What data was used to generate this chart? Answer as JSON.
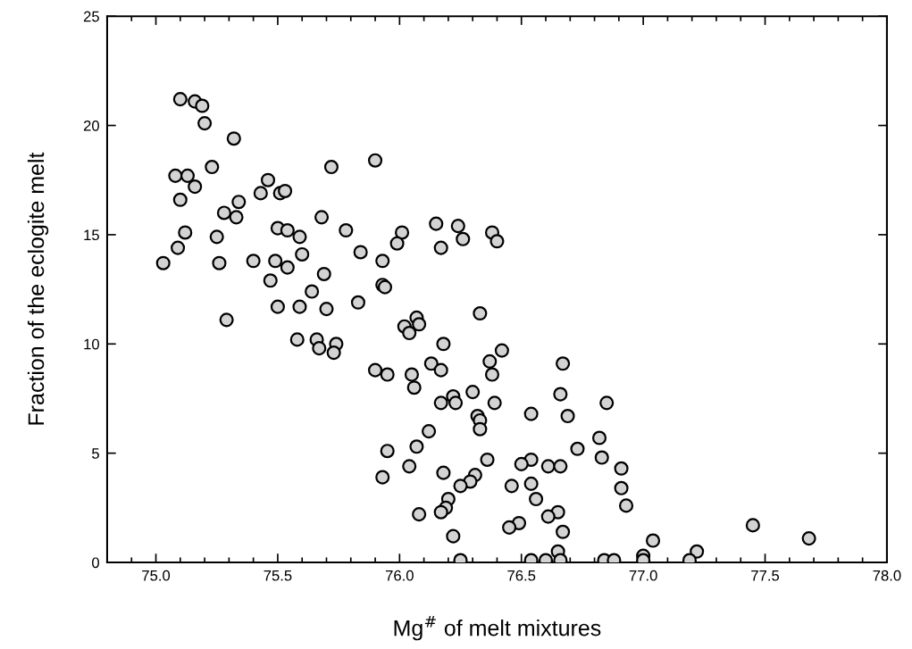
{
  "chart_data": {
    "type": "scatter",
    "xlabel": "Mg$^{#}$ of melt mixtures",
    "ylabel": "Fraction of the eclogite melt",
    "xlim": [
      74.8,
      78.0
    ],
    "xticks": [
      {
        "value": 75,
        "label": "75.0"
      },
      {
        "value": 75.5,
        "label": "75.5"
      },
      {
        "value": 76,
        "label": "76.0"
      },
      {
        "value": 76.5,
        "label": "76.5"
      },
      {
        "value": 77,
        "label": "77.0"
      },
      {
        "value": 77.5,
        "label": "77.5"
      },
      {
        "value": 78,
        "label": "78.0"
      }
    ],
    "ylim": [
      0,
      25
    ],
    "yticks": [
      0,
      5,
      10,
      15,
      20,
      25
    ],
    "grid": false,
    "marker": "circle",
    "series": [
      {
        "color": "#d3d3d3",
        "x": [
          75.1,
          75.16,
          75.19,
          75.2,
          75.32,
          75.23,
          75.72,
          75.9,
          75.08,
          75.13,
          75.16,
          75.1,
          75.46,
          75.43,
          75.51,
          75.53,
          75.34,
          75.28,
          75.33,
          75.68,
          75.12,
          75.25,
          75.5,
          75.54,
          75.59,
          75.78,
          76.01,
          75.99,
          75.09,
          75.03,
          75.26,
          75.4,
          75.49,
          75.54,
          75.6,
          75.84,
          75.93,
          75.69,
          75.47,
          75.64,
          75.93,
          75.94,
          75.83,
          75.5,
          75.59,
          75.7,
          75.29,
          76.02,
          76.07,
          76.04,
          76.08,
          75.58,
          75.66,
          75.67,
          75.74,
          75.73,
          75.9,
          75.95,
          76.05,
          76.06,
          75.95,
          75.93,
          76.04,
          76.07,
          76.08,
          76.15,
          76.24,
          76.26,
          76.17,
          76.38,
          76.4,
          76.33,
          76.18,
          76.42,
          76.37,
          76.67,
          76.13,
          76.17,
          76.38,
          76.3,
          76.22,
          76.23,
          76.17,
          76.39,
          76.66,
          76.85,
          76.54,
          76.69,
          76.32,
          76.33,
          76.33,
          76.12,
          76.82,
          76.73,
          76.83,
          76.91,
          76.91,
          76.93,
          76.36,
          76.54,
          76.5,
          76.61,
          76.66,
          76.18,
          76.31,
          76.29,
          76.25,
          76.46,
          76.54,
          76.56,
          76.2,
          76.19,
          76.17,
          76.65,
          76.61,
          76.49,
          76.45,
          76.67,
          76.22,
          76.65,
          77.04,
          76.25,
          76.54,
          76.6,
          76.66,
          76.84,
          76.88,
          77.0,
          77.0,
          77.22,
          77.19,
          77.45,
          77.68
        ],
        "values": [
          21.2,
          21.1,
          20.9,
          20.1,
          19.4,
          18.1,
          18.1,
          18.4,
          17.7,
          17.7,
          17.2,
          16.6,
          17.5,
          16.9,
          16.9,
          17.0,
          16.5,
          16.0,
          15.8,
          15.8,
          15.1,
          14.9,
          15.3,
          15.2,
          14.9,
          15.2,
          15.1,
          14.6,
          14.4,
          13.7,
          13.7,
          13.8,
          13.8,
          13.5,
          14.1,
          14.2,
          13.8,
          13.2,
          12.9,
          12.4,
          12.7,
          12.6,
          11.9,
          11.7,
          11.7,
          11.6,
          11.1,
          10.8,
          11.2,
          10.5,
          10.9,
          10.2,
          10.2,
          9.8,
          10.0,
          9.6,
          8.8,
          8.6,
          8.6,
          8.0,
          5.1,
          3.9,
          4.4,
          5.3,
          2.2,
          15.5,
          15.4,
          14.8,
          14.4,
          15.1,
          14.7,
          11.4,
          10.0,
          9.7,
          9.2,
          9.1,
          9.1,
          8.8,
          8.6,
          7.8,
          7.6,
          7.3,
          7.3,
          7.3,
          7.7,
          7.3,
          6.8,
          6.7,
          6.7,
          6.5,
          6.1,
          6.0,
          5.7,
          5.2,
          4.8,
          4.3,
          3.4,
          2.6,
          4.7,
          4.7,
          4.5,
          4.4,
          4.4,
          4.1,
          4.0,
          3.7,
          3.5,
          3.5,
          3.6,
          2.9,
          2.9,
          2.5,
          2.3,
          2.3,
          2.1,
          1.8,
          1.6,
          1.4,
          1.2,
          0.5,
          1.0,
          0.1,
          0.1,
          0.1,
          0.1,
          0.1,
          0.1,
          0.3,
          0.1,
          0.5,
          0.1,
          1.7,
          1.1
        ]
      }
    ]
  }
}
